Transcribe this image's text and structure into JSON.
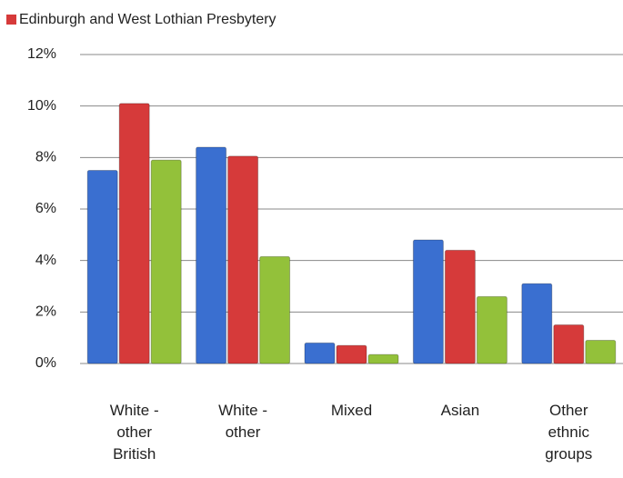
{
  "chart_data": {
    "type": "bar",
    "categories": [
      "White - other British",
      "White - other",
      "Mixed",
      "Asian",
      "Other ethnic groups"
    ],
    "series": [
      {
        "color": "#3a6fd0",
        "values": [
          7.5,
          8.4,
          0.8,
          4.8,
          3.1
        ]
      },
      {
        "name": "Edinburgh and West Lothian Presbytery",
        "color": "#d63a3a",
        "values": [
          10.1,
          8.05,
          0.7,
          4.4,
          1.5
        ]
      },
      {
        "color": "#93c13a",
        "values": [
          7.9,
          4.15,
          0.35,
          2.6,
          0.9
        ]
      }
    ],
    "ylim": [
      0,
      12
    ],
    "yticks": [
      {
        "value": 0,
        "label": "0%"
      },
      {
        "value": 2,
        "label": "2%"
      },
      {
        "value": 4,
        "label": "4%"
      },
      {
        "value": 6,
        "label": "6%"
      },
      {
        "value": 8,
        "label": "8%"
      },
      {
        "value": 10,
        "label": "10%"
      },
      {
        "value": 12,
        "label": "12%"
      }
    ],
    "grid": true
  }
}
